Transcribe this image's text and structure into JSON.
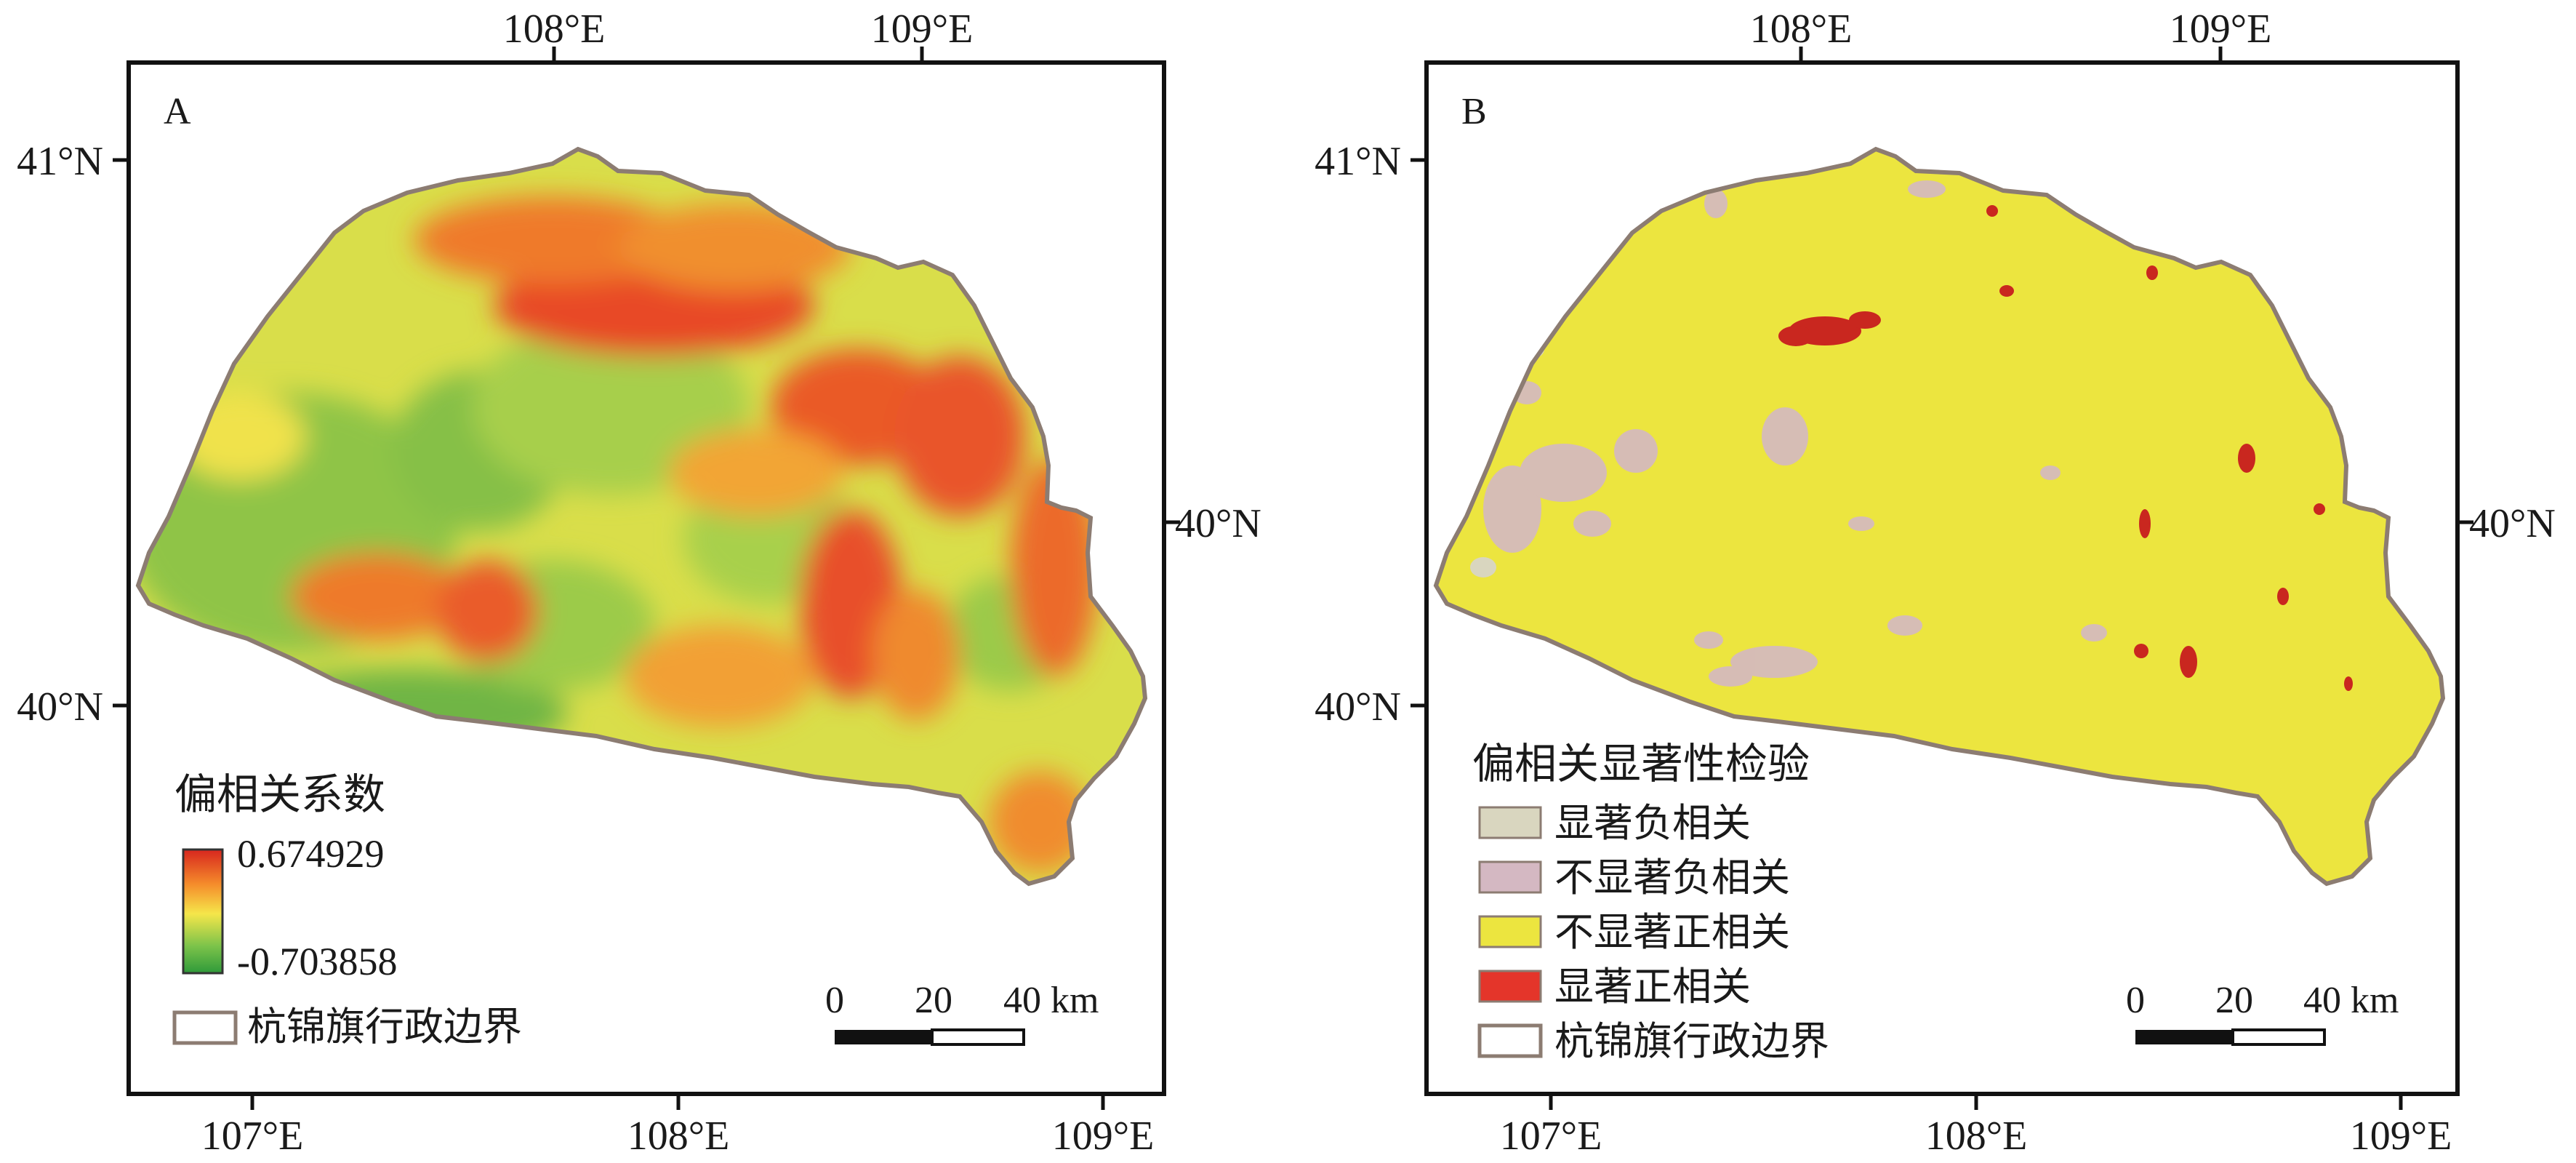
{
  "panels": [
    {
      "letter": "A",
      "top_labels": [
        "108°E",
        "109°E"
      ],
      "bottom_labels": [
        "107°E",
        "108°E",
        "109°E"
      ],
      "left_labels": [
        "41°N",
        "40°N"
      ],
      "right_labels": [
        "40°N"
      ],
      "legend": {
        "title": "偏相关系数",
        "max": "0.674929",
        "min": "-0.703858",
        "ramp_colors": [
          "#d7261e",
          "#f58c2b",
          "#f5e64a",
          "#7cc34a",
          "#2f9a3a"
        ],
        "boundary_label": "杭锦旗行政边界"
      },
      "scale": {
        "labels": [
          "0",
          "20",
          "40 km"
        ]
      }
    },
    {
      "letter": "B",
      "top_labels": [
        "108°E",
        "109°E"
      ],
      "bottom_labels": [
        "107°E",
        "108°E",
        "109°E"
      ],
      "left_labels": [
        "41°N",
        "40°N"
      ],
      "right_labels": [
        "40°N"
      ],
      "legend": {
        "title": "偏相关显著性检验",
        "items": [
          {
            "label": "显著负相关",
            "color": "#d9d6bf"
          },
          {
            "label": "不显著负相关",
            "color": "#d4b8c2"
          },
          {
            "label": "不显著正相关",
            "color": "#ece53f"
          },
          {
            "label": "显著正相关",
            "color": "#e4352a"
          },
          {
            "label": "杭锦旗行政边界",
            "color": "#ffffff"
          }
        ]
      },
      "scale": {
        "labels": [
          "0",
          "20",
          "40 km"
        ]
      }
    }
  ],
  "colors": {
    "boundary": "#8c7c72",
    "frame": "#111111",
    "map_b_fill": "#ece53f",
    "map_a_green": "#9fcb4c",
    "map_a_orange": "#f0932e",
    "map_a_red": "#e03a24",
    "map_a_yellow": "#eede49"
  }
}
